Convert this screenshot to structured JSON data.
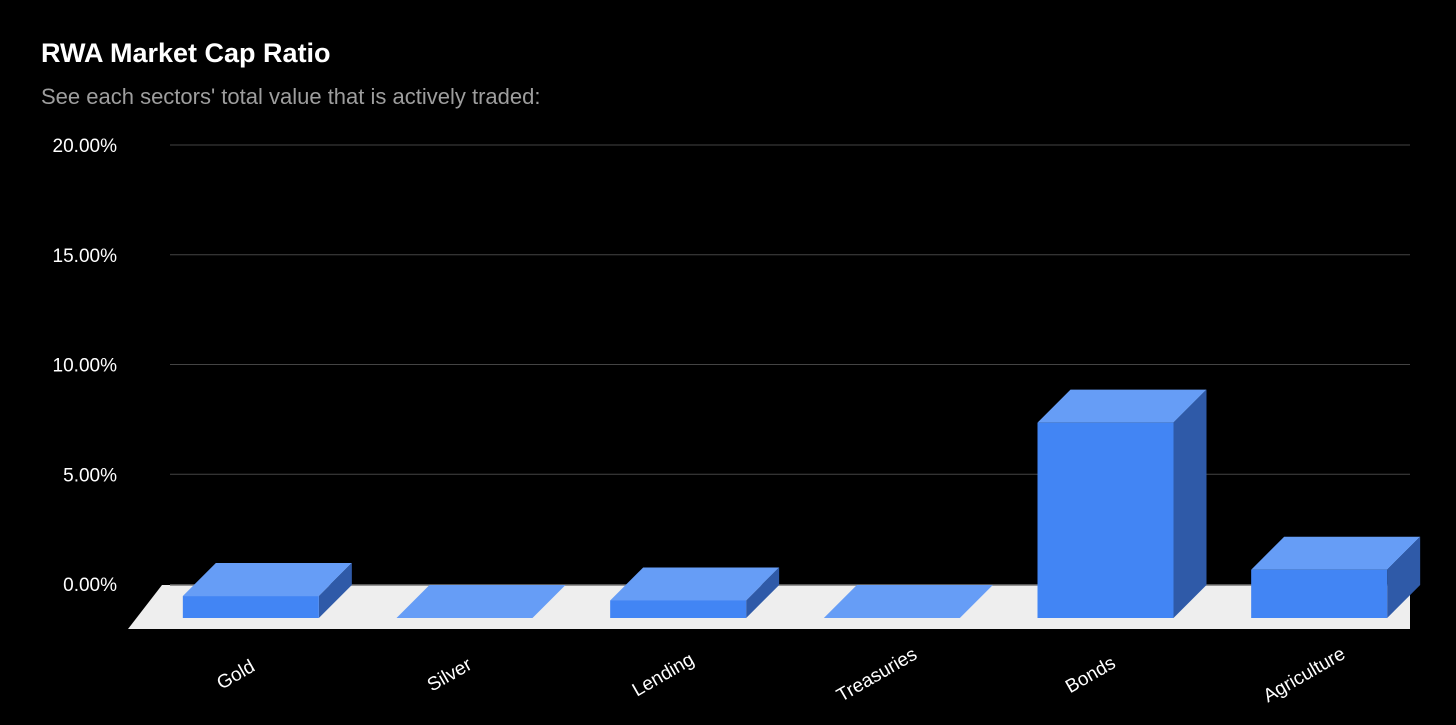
{
  "chart_data": {
    "type": "bar",
    "title": "RWA Market Cap Ratio",
    "subtitle": "See each sectors' total value that is actively traded:",
    "categories": [
      "Gold",
      "Silver",
      "Lending",
      "Treasuries",
      "Bonds",
      "Agriculture"
    ],
    "values": [
      1.0,
      0.0,
      0.8,
      0.0,
      8.9,
      2.2
    ],
    "unit": "%",
    "ylim": [
      0,
      20
    ],
    "yticks": [
      "0.00%",
      "5.00%",
      "10.00%",
      "15.00%",
      "20.00%"
    ],
    "ytick_values": [
      0,
      5,
      10,
      15,
      20
    ],
    "grid": true,
    "three_d": true,
    "legend": "none",
    "colors": {
      "background": "#000000",
      "bar_front": "#4285f4",
      "bar_top": "#669df6",
      "bar_side": "#2f5aa8",
      "floor": "#eeeeee",
      "grid": "#444444",
      "baseline": "#777777"
    }
  }
}
